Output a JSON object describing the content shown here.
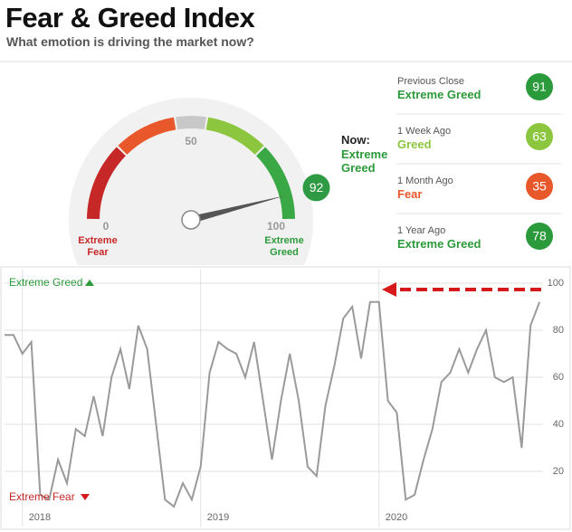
{
  "header": {
    "title": "Fear & Greed Index",
    "subtitle": "What emotion is driving the market now?"
  },
  "now": {
    "label": "Now:",
    "rating": "Extreme Greed"
  },
  "history": [
    {
      "label": "Previous Close",
      "rating": "Extreme Greed",
      "value": 91,
      "color": "#2b9a3a"
    },
    {
      "label": "1 Week Ago",
      "rating": "Greed",
      "value": 63,
      "color": "#8cc63f"
    },
    {
      "label": "1 Month Ago",
      "rating": "Fear",
      "value": 35,
      "color": "#e8582a"
    },
    {
      "label": "1 Year Ago",
      "rating": "Extreme Greed",
      "value": 78,
      "color": "#2b9a3a"
    }
  ],
  "chart_data": [
    {
      "type": "gauge",
      "value": 92,
      "ylim": [
        0,
        100
      ],
      "yticks": [
        0,
        50,
        100
      ],
      "low_label": "Extreme Fear",
      "high_label": "Extreme Greed",
      "color": "#2e9a44"
    },
    {
      "type": "line",
      "color": "#9a9a9a",
      "grid": true,
      "x": [
        2017.9,
        2017.95,
        2018,
        2018.05,
        2018.1,
        2018.15,
        2018.2,
        2018.25,
        2018.3,
        2018.35,
        2018.4,
        2018.45,
        2018.5,
        2018.55,
        2018.6,
        2018.65,
        2018.7,
        2018.75,
        2018.8,
        2018.85,
        2018.9,
        2018.95,
        2019,
        2019.05,
        2019.1,
        2019.15,
        2019.2,
        2019.25,
        2019.3,
        2019.35,
        2019.4,
        2019.45,
        2019.5,
        2019.55,
        2019.6,
        2019.65,
        2019.7,
        2019.75,
        2019.8,
        2019.85,
        2019.9,
        2019.95,
        2020,
        2020.05,
        2020.1,
        2020.15,
        2020.2,
        2020.25,
        2020.3,
        2020.35,
        2020.4,
        2020.45,
        2020.5,
        2020.55,
        2020.6,
        2020.65,
        2020.7,
        2020.75,
        2020.8,
        2020.85,
        2020.9
      ],
      "values": [
        78,
        78,
        70,
        75,
        10,
        8,
        25,
        15,
        38,
        35,
        52,
        35,
        60,
        72,
        55,
        82,
        72,
        40,
        8,
        5,
        15,
        8,
        22,
        62,
        75,
        72,
        70,
        60,
        75,
        50,
        25,
        50,
        70,
        50,
        22,
        18,
        48,
        65,
        85,
        90,
        68,
        92,
        92,
        50,
        45,
        8,
        10,
        25,
        38,
        58,
        62,
        72,
        62,
        72,
        80,
        60,
        58,
        60,
        30,
        82,
        92
      ],
      "xlim": [
        2017.9,
        2020.92
      ],
      "xticks": [
        2018,
        2019,
        2020
      ],
      "ylim": [
        5,
        100
      ],
      "yticks": [
        20,
        40,
        60,
        80,
        100
      ],
      "top_label": "Extreme Greed",
      "bottom_label": "Extreme Fear"
    }
  ]
}
